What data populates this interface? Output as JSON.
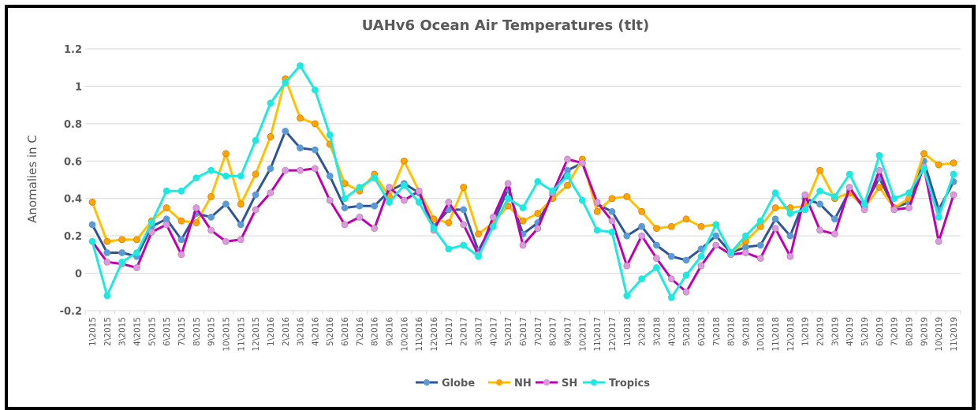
{
  "chart_data": {
    "type": "line",
    "title": "UAHv6 Ocean Air Temperatures (tlt)",
    "xlabel": "",
    "ylabel": "Anomalies in C",
    "ylim": [
      -0.2,
      1.2
    ],
    "yticks": [
      -0.2,
      0,
      0.2,
      0.4,
      0.6,
      0.8,
      1,
      1.2
    ],
    "ytick_labels": [
      "-0.2",
      "0",
      "0.2",
      "0.4",
      "0.6",
      "0.8",
      "1",
      "1.2"
    ],
    "grid": true,
    "legend_position": "bottom",
    "x": [
      "1\\2015",
      "2\\2015",
      "3\\2015",
      "4\\2015",
      "5\\2015",
      "6\\2015",
      "7\\2015",
      "8\\2015",
      "9\\2015",
      "10\\2015",
      "11\\2015",
      "12\\2015",
      "1\\2016",
      "2\\2016",
      "3\\2016",
      "4\\2016",
      "5\\2016",
      "6\\2016",
      "7\\2016",
      "8\\2016",
      "9\\2016",
      "10\\2016",
      "11\\2016",
      "12\\2016",
      "1\\2017",
      "2\\2017",
      "3\\2017",
      "4\\2017",
      "5\\2017",
      "6\\2017",
      "7\\2017",
      "8\\2017",
      "9\\2017",
      "10\\2017",
      "11\\2017",
      "12\\2017",
      "1\\2018",
      "2\\2018",
      "3\\2018",
      "4\\2018",
      "5\\2018",
      "6\\2018",
      "7\\2018",
      "8\\2018",
      "9\\2018",
      "10\\2018",
      "11\\2018",
      "12\\2018",
      "1\\2019",
      "2\\2019",
      "3\\2019",
      "4\\2019",
      "5\\2019",
      "6\\2019",
      "7\\2019",
      "8\\2019",
      "9\\2019",
      "10\\2019",
      "11\\2019"
    ],
    "series": [
      {
        "name": "Globe",
        "line_color": "#2f5597",
        "marker_color": "#5b9bd5",
        "values": [
          0.26,
          0.11,
          0.11,
          0.09,
          0.25,
          0.29,
          0.18,
          0.32,
          0.3,
          0.37,
          0.26,
          0.42,
          0.56,
          0.76,
          0.67,
          0.66,
          0.52,
          0.35,
          0.36,
          0.36,
          0.44,
          0.48,
          0.43,
          0.25,
          0.34,
          0.34,
          0.12,
          0.27,
          0.45,
          0.21,
          0.27,
          0.42,
          0.55,
          0.59,
          0.37,
          0.33,
          0.2,
          0.25,
          0.15,
          0.09,
          0.07,
          0.13,
          0.2,
          0.11,
          0.14,
          0.15,
          0.29,
          0.2,
          0.4,
          0.37,
          0.29,
          0.44,
          0.36,
          0.51,
          0.35,
          0.38,
          0.6,
          0.34,
          0.49
        ]
      },
      {
        "name": "NH",
        "line_color": "#ffc000",
        "marker_color": "#ffa500",
        "values": [
          0.38,
          0.17,
          0.18,
          0.18,
          0.28,
          0.35,
          0.28,
          0.27,
          0.41,
          0.64,
          0.37,
          0.53,
          0.73,
          1.04,
          0.83,
          0.8,
          0.69,
          0.48,
          0.44,
          0.53,
          0.41,
          0.6,
          0.44,
          0.29,
          0.27,
          0.46,
          0.21,
          0.27,
          0.36,
          0.28,
          0.32,
          0.4,
          0.47,
          0.61,
          0.33,
          0.4,
          0.41,
          0.33,
          0.24,
          0.25,
          0.29,
          0.25,
          0.26,
          0.11,
          0.17,
          0.25,
          0.35,
          0.35,
          0.36,
          0.55,
          0.4,
          0.43,
          0.35,
          0.46,
          0.35,
          0.4,
          0.64,
          0.58,
          0.59
        ]
      },
      {
        "name": "SH",
        "line_color": "#c000b0",
        "marker_color": "#dd99dd",
        "values": [
          0.17,
          0.06,
          0.05,
          0.03,
          0.22,
          0.26,
          0.1,
          0.35,
          0.23,
          0.17,
          0.18,
          0.34,
          0.43,
          0.55,
          0.55,
          0.56,
          0.39,
          0.26,
          0.3,
          0.24,
          0.46,
          0.39,
          0.44,
          0.23,
          0.38,
          0.26,
          0.1,
          0.3,
          0.48,
          0.15,
          0.24,
          0.43,
          0.61,
          0.59,
          0.38,
          0.28,
          0.04,
          0.2,
          0.08,
          -0.03,
          -0.1,
          0.04,
          0.15,
          0.1,
          0.11,
          0.08,
          0.24,
          0.09,
          0.42,
          0.23,
          0.21,
          0.46,
          0.34,
          0.55,
          0.34,
          0.35,
          0.57,
          0.17,
          0.42
        ]
      },
      {
        "name": "Tropics",
        "line_color": "#1de9e0",
        "marker_color": "#1de9e0",
        "values": [
          0.17,
          -0.12,
          0.06,
          0.11,
          0.27,
          0.44,
          0.44,
          0.51,
          0.55,
          0.52,
          0.52,
          0.71,
          0.91,
          1.02,
          1.11,
          0.98,
          0.74,
          0.4,
          0.46,
          0.51,
          0.38,
          0.47,
          0.38,
          0.24,
          0.13,
          0.15,
          0.09,
          0.25,
          0.4,
          0.35,
          0.49,
          0.44,
          0.52,
          0.39,
          0.23,
          0.22,
          -0.12,
          -0.03,
          0.03,
          -0.13,
          -0.01,
          0.09,
          0.26,
          0.11,
          0.2,
          0.28,
          0.43,
          0.32,
          0.34,
          0.44,
          0.41,
          0.53,
          0.37,
          0.63,
          0.4,
          0.43,
          0.56,
          0.3,
          0.53
        ]
      }
    ]
  }
}
